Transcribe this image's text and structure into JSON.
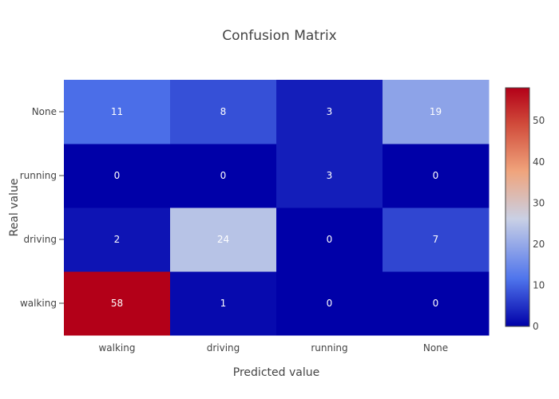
{
  "chart_data": {
    "type": "heatmap",
    "title": "Confusion Matrix",
    "xlabel": "Predicted value",
    "ylabel": "Real value",
    "x_categories": [
      "walking",
      "driving",
      "running",
      "None"
    ],
    "y_categories": [
      "walking",
      "driving",
      "running",
      "None"
    ],
    "z": [
      [
        58,
        1,
        0,
        0
      ],
      [
        2,
        24,
        0,
        7
      ],
      [
        0,
        0,
        3,
        0
      ],
      [
        11,
        8,
        3,
        19
      ]
    ],
    "colorscale": [
      [
        0.0,
        "#0000a8"
      ],
      [
        0.2,
        "#4f74ec"
      ],
      [
        0.45,
        "#c9d0e5"
      ],
      [
        0.65,
        "#f0a47c"
      ],
      [
        0.85,
        "#d04a3a"
      ],
      [
        1.0,
        "#b30018"
      ]
    ],
    "zmin": 0,
    "zmax": 58,
    "colorbar_ticks": [
      0,
      10,
      20,
      30,
      40,
      50
    ]
  }
}
